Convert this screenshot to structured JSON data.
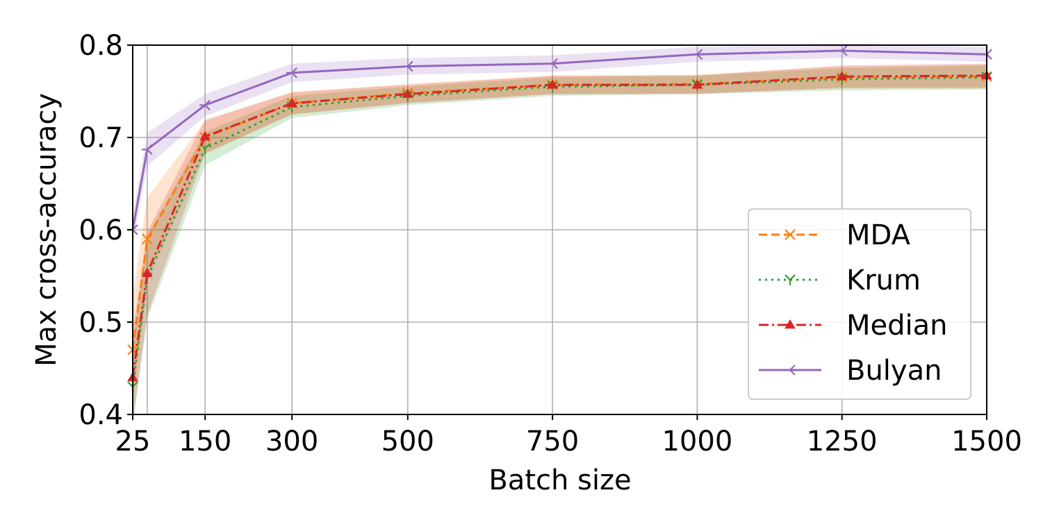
{
  "chart_data": {
    "type": "line",
    "title": "",
    "xlabel": "Batch size",
    "ylabel": "Max cross-accuracy",
    "xlim": [
      25,
      1500
    ],
    "ylim": [
      0.4,
      0.8
    ],
    "xticks": [
      25,
      150,
      300,
      500,
      750,
      1000,
      1250,
      1500
    ],
    "xtick_labels": [
      "25",
      "150",
      "300",
      "500",
      "750",
      "1000",
      "1250",
      "1500"
    ],
    "yticks": [
      0.4,
      0.5,
      0.6,
      0.7,
      0.8
    ],
    "ytick_labels": [
      "0.4",
      "0.5",
      "0.6",
      "0.7",
      "0.8"
    ],
    "extra_x_gridlines": [
      50
    ],
    "grid": true,
    "legend_position": "lower-right",
    "x": [
      25,
      50,
      150,
      300,
      500,
      750,
      1000,
      1250,
      1500
    ],
    "series": [
      {
        "name": "MDA",
        "color": "#ff7f0e",
        "line_style": "dashed",
        "marker": "x",
        "values": [
          0.47,
          0.59,
          0.7,
          0.737,
          0.748,
          0.757,
          0.758,
          0.765,
          0.766
        ],
        "band": [
          0.06,
          0.045,
          0.018,
          0.012,
          0.01,
          0.01,
          0.01,
          0.012,
          0.013
        ]
      },
      {
        "name": "Krum",
        "color": "#2ca02c",
        "line_style": "dotted",
        "marker": "tri_down",
        "values": [
          0.43,
          0.548,
          0.688,
          0.733,
          0.745,
          0.755,
          0.757,
          0.763,
          0.765
        ],
        "band": [
          0.04,
          0.045,
          0.018,
          0.012,
          0.01,
          0.01,
          0.01,
          0.012,
          0.013
        ]
      },
      {
        "name": "Median",
        "color": "#d62728",
        "line_style": "dashdot",
        "marker": "triangle",
        "values": [
          0.44,
          0.553,
          0.701,
          0.737,
          0.747,
          0.757,
          0.757,
          0.766,
          0.767
        ],
        "band": [
          0.05,
          0.045,
          0.018,
          0.012,
          0.01,
          0.01,
          0.01,
          0.012,
          0.013
        ]
      },
      {
        "name": "Bulyan",
        "color": "#9467bd",
        "line_style": "solid",
        "marker": "tri_left",
        "values": [
          0.6,
          0.687,
          0.735,
          0.77,
          0.777,
          0.78,
          0.79,
          0.794,
          0.79
        ],
        "band": [
          0.015,
          0.018,
          0.012,
          0.01,
          0.009,
          0.009,
          0.008,
          0.008,
          0.008
        ]
      }
    ]
  }
}
